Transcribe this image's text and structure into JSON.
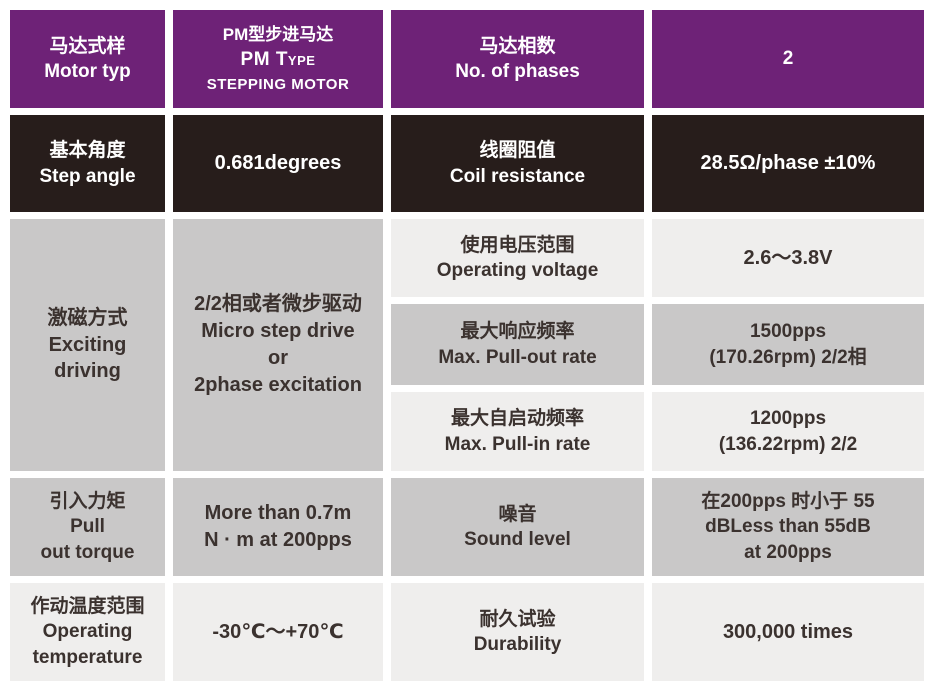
{
  "colors": {
    "purple": "#6e2277",
    "dark": "#271d1b",
    "gray": "#c9c8c8",
    "light": "#efeeed",
    "text_dark": "#3b322f",
    "text_light": "#ffffff",
    "page_bg": "#ffffff"
  },
  "table": {
    "header_row": {
      "motor_type_label": [
        "马达式样",
        "Motor typ"
      ],
      "motor_type_value": [
        "PM型步进马达",
        "PM Type",
        "STEPPING MOTOR"
      ],
      "phases_label": [
        "马达相数",
        "No. of phases"
      ],
      "phases_value": [
        "2"
      ]
    },
    "step_angle_row": {
      "step_angle_label": [
        "基本角度",
        "Step angle"
      ],
      "step_angle_value": [
        "0.681degrees"
      ],
      "coil_resistance_label": [
        "线圈阻值",
        "Coil resistance"
      ],
      "coil_resistance_value": [
        "28.5Ω/phase ±10%"
      ]
    },
    "exciting_group": {
      "exciting_label": [
        "激磁方式",
        "Exciting",
        "driving"
      ],
      "exciting_value": [
        "2/2相或者微步驱动",
        "Micro step drive",
        "or",
        "2phase excitation"
      ],
      "operating_voltage_label": [
        "使用电压范围",
        "Operating voltage"
      ],
      "operating_voltage_value": [
        "2.6～3.8V"
      ],
      "pull_out_rate_label": [
        "最大响应频率",
        "Max. Pull-out rate"
      ],
      "pull_out_rate_value": [
        "1500pps",
        "(170.26rpm) 2/2相"
      ],
      "pull_in_rate_label": [
        "最大自启动频率",
        "Max. Pull-in rate"
      ],
      "pull_in_rate_value": [
        "1200pps",
        "(136.22rpm) 2/2"
      ]
    },
    "torque_row": {
      "pull_out_torque_label": [
        "引入力矩",
        "Pull",
        "out torque"
      ],
      "pull_out_torque_value": [
        "More than 0.7m",
        "N · m at 200pps"
      ],
      "sound_level_label": [
        "噪音",
        "Sound level"
      ],
      "sound_level_value": [
        "在200pps 时小于 55",
        "dBLess than 55dB",
        "at 200pps"
      ]
    },
    "temperature_row": {
      "operating_temperature_label": [
        "作动温度范围",
        "Operating",
        "temperature"
      ],
      "operating_temperature_value": [
        "-30℃～+70℃"
      ],
      "durability_label": [
        "耐久试验",
        "Durability"
      ],
      "durability_value": [
        "300,000 times"
      ]
    }
  }
}
